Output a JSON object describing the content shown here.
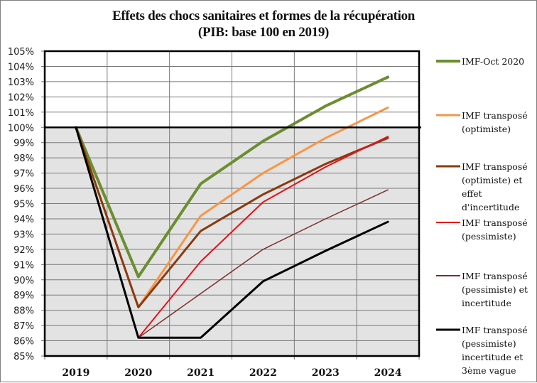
{
  "chart_data": {
    "type": "line",
    "title": "Effets des chocs sanitaires et formes de la récupération",
    "subtitle": "(PIB: base 100 en 2019)",
    "xlabel": "",
    "ylabel": "",
    "categories": [
      "2019",
      "2020",
      "2021",
      "2022",
      "2023",
      "2024"
    ],
    "ylim": [
      85,
      105
    ],
    "y_ticks": [
      "105%",
      "104%",
      "103%",
      "102%",
      "101%",
      "100%",
      "99%",
      "98%",
      "97%",
      "96%",
      "95%",
      "94%",
      "93%",
      "92%",
      "91%",
      "90%",
      "89%",
      "88%",
      "87%",
      "86%",
      "85%"
    ],
    "grid": true,
    "shaded_below": 100,
    "legend_position": "right",
    "series": [
      {
        "name": "IMF-Oct 2020",
        "legend_lines": [
          "IMF-Oct 2020"
        ],
        "color": "#6B8E2F",
        "width": 4,
        "values": [
          100,
          90.2,
          96.3,
          99.1,
          101.4,
          103.3
        ]
      },
      {
        "name": "IMF transposé (optimiste)",
        "legend_lines": [
          "IMF transposé",
          "(optimiste)"
        ],
        "color": "#F79646",
        "width": 3,
        "values": [
          100,
          88.2,
          94.2,
          97.0,
          99.3,
          101.3
        ]
      },
      {
        "name": "IMF transposé (optimiste) et effet d'incertitude",
        "legend_lines": [
          "IMF transposé",
          "(optimiste) et",
          "effet",
          "d'incertitude"
        ],
        "color": "#8B3A0F",
        "width": 3,
        "values": [
          100,
          88.2,
          93.2,
          95.6,
          97.6,
          99.3
        ]
      },
      {
        "name": "IMF transposé (pessimiste)",
        "legend_lines": [
          "IMF transposé",
          "(pessimiste)"
        ],
        "color": "#E8101B",
        "width": 2,
        "values": [
          100,
          86.2,
          91.2,
          95.1,
          97.4,
          99.4
        ]
      },
      {
        "name": "IMF transposé (pessimiste) et incertitude",
        "legend_lines": [
          "IMF transposé",
          "(pessimiste) et",
          "incertitude"
        ],
        "color": "#7B2C2C",
        "width": 1.5,
        "values": [
          100,
          86.2,
          89.1,
          92.0,
          94.0,
          95.9
        ]
      },
      {
        "name": "IMF transposé (pessimiste) incertitude et 3ème vague",
        "legend_lines": [
          "IMF transposé",
          "(pessimiste)",
          "incertitude et",
          "3ème vague"
        ],
        "color": "#000000",
        "width": 3,
        "values": [
          100,
          86.2,
          86.2,
          89.9,
          91.9,
          93.8
        ]
      }
    ]
  }
}
